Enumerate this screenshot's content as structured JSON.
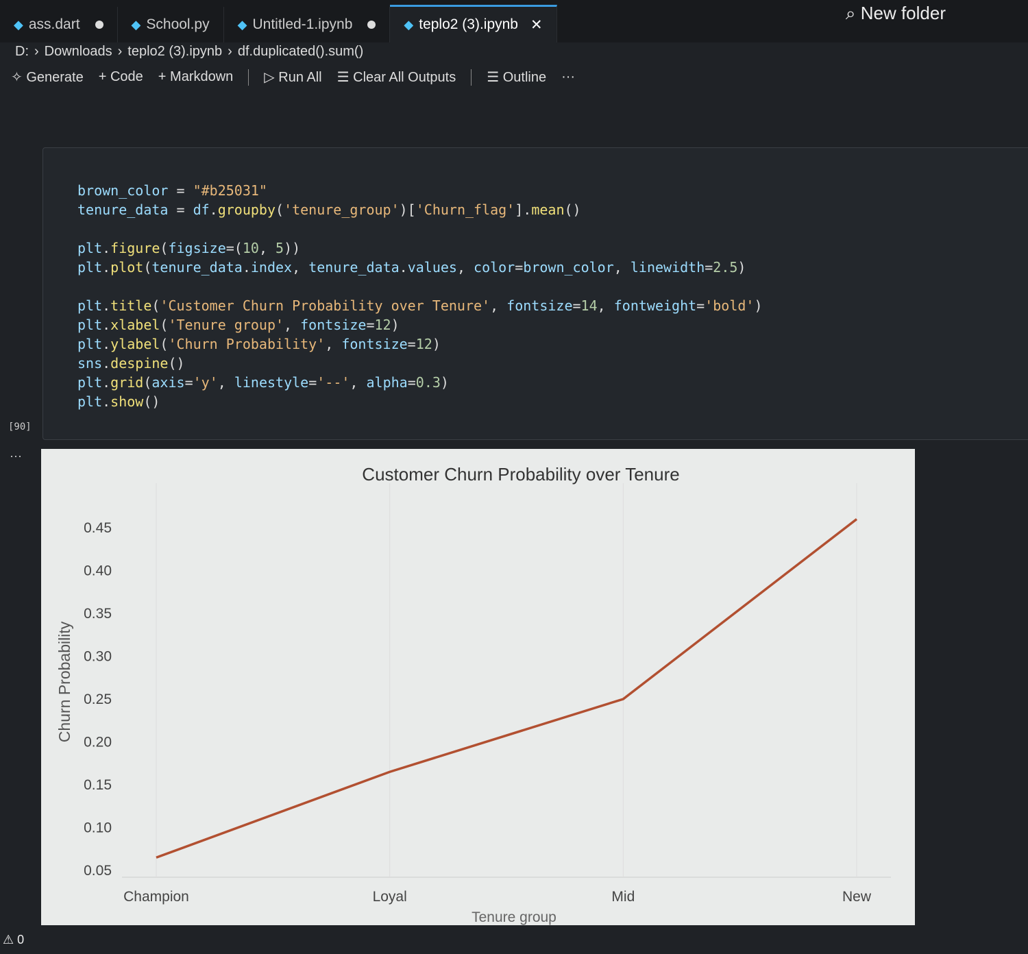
{
  "tabs": [
    {
      "label": "ass.dart",
      "modified": true
    },
    {
      "label": "School.py",
      "modified": false
    },
    {
      "label": "Untitled-1.ipynb",
      "modified": true
    },
    {
      "label": "teplo2 (3).ipynb",
      "active": true
    }
  ],
  "search": {
    "label": "New folder"
  },
  "breadcrumb": [
    "D:",
    "Downloads",
    "teplo2 (3).ipynb",
    "df.duplicated().sum()"
  ],
  "toolbar": {
    "generate": "Generate",
    "code": "Code",
    "markdown": "Markdown",
    "run_all": "Run All",
    "clear": "Clear All Outputs",
    "outline": "Outline",
    "more": "···"
  },
  "cell": {
    "exec_count": "[90]",
    "lines": [
      "brown_color = \"#b25031\"",
      "tenure_data = df.groupby('tenure_group')['Churn_flag'].mean()",
      "",
      "plt.figure(figsize=(10, 5))",
      "plt.plot(tenure_data.index, tenure_data.values, color=brown_color, linewidth=2.5)",
      "",
      "plt.title('Customer Churn Probability over Tenure', fontsize=14, fontweight='bold')",
      "plt.xlabel('Tenure group', fontsize=12)",
      "plt.ylabel('Churn Probability', fontsize=12)",
      "sns.despine()",
      "plt.grid(axis='y', linestyle='--', alpha=0.3)",
      "plt.show()"
    ]
  },
  "output_more": "···",
  "status": {
    "problems": "0"
  },
  "chart_data": {
    "type": "line",
    "title": "Customer Churn Probability over Tenure",
    "xlabel": "Tenure group",
    "ylabel": "Churn Probability",
    "categories": [
      "Champion",
      "Loyal",
      "Mid",
      "New"
    ],
    "values": [
      0.065,
      0.165,
      0.25,
      0.46
    ],
    "yticks": [
      "0.05",
      "0.10",
      "0.15",
      "0.20",
      "0.25",
      "0.30",
      "0.35",
      "0.40",
      "0.45"
    ],
    "ylim": [
      0.05,
      0.47
    ],
    "color": "#b25031",
    "grid": "vertical faint"
  }
}
